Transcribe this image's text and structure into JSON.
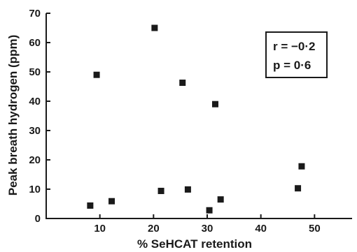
{
  "chart_data": {
    "type": "scatter",
    "title": "",
    "xlabel": "% SeHCAT retention",
    "ylabel": "Peak breath hydrogen (ppm)",
    "xlim": [
      0,
      57
    ],
    "ylim": [
      0,
      70
    ],
    "x_ticks": [
      10,
      20,
      30,
      40,
      50
    ],
    "y_ticks": [
      0,
      10,
      20,
      30,
      40,
      50,
      60,
      70
    ],
    "x_tick_labels": [
      "10",
      "20",
      "30",
      "40",
      "50"
    ],
    "y_tick_labels": [
      "0",
      "10",
      "20",
      "30",
      "40",
      "50",
      "60",
      "70"
    ],
    "grid": false,
    "points": [
      {
        "x": 8.2,
        "y": 4.4
      },
      {
        "x": 9.4,
        "y": 49
      },
      {
        "x": 12.2,
        "y": 5.9
      },
      {
        "x": 20.2,
        "y": 65
      },
      {
        "x": 21.4,
        "y": 9.4
      },
      {
        "x": 25.4,
        "y": 46.3
      },
      {
        "x": 26.4,
        "y": 9.9
      },
      {
        "x": 30.4,
        "y": 2.8
      },
      {
        "x": 31.5,
        "y": 39
      },
      {
        "x": 32.5,
        "y": 6.5
      },
      {
        "x": 46.9,
        "y": 10.3
      },
      {
        "x": 47.6,
        "y": 17.8
      }
    ],
    "marker_color": "#1a1a1a",
    "annotation": {
      "line1": "r = −0·2",
      "line2": "p = 0·6",
      "placement": "top-right"
    }
  }
}
